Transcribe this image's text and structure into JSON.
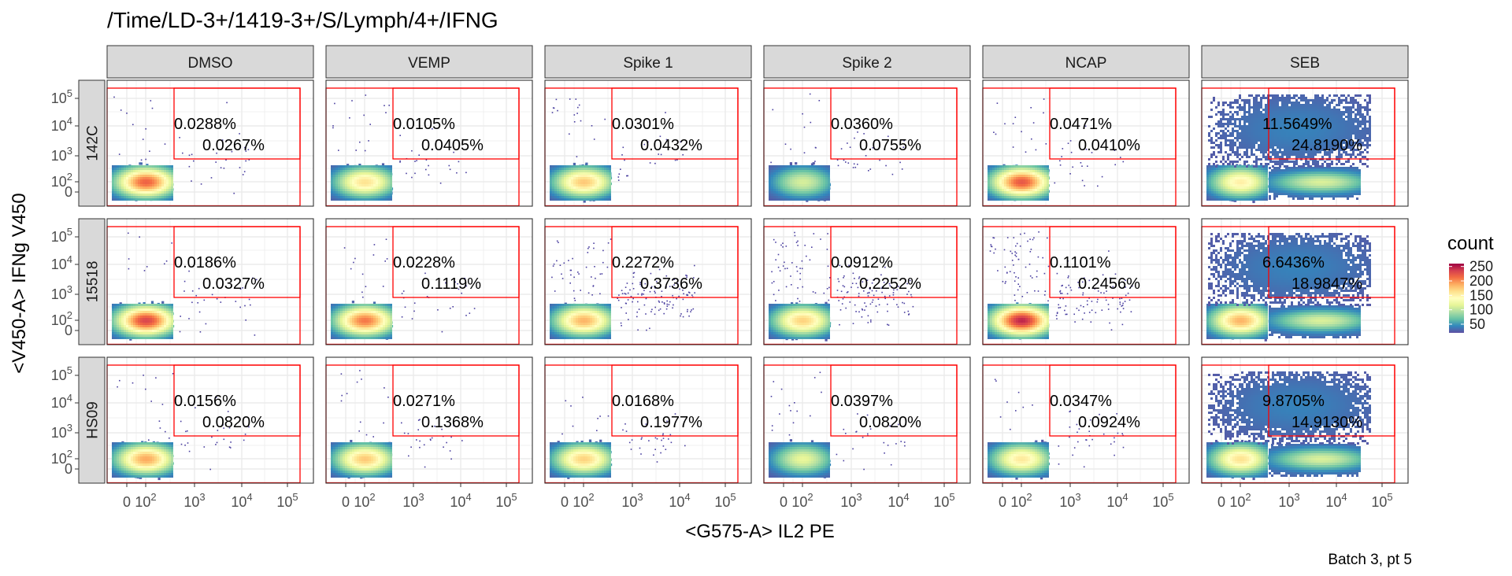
{
  "chart_data": {
    "type": "heatmap",
    "title": "/Time/LD-3+/1419-3+/S/Lymph/4+/IFNG",
    "xlabel": "<G575-A> IL2 PE",
    "ylabel": "<V450-A> IFNg V450",
    "caption": "Batch 3, pt 5",
    "columns": [
      "DMSO",
      "VEMP",
      "Spike 1",
      "Spike 2",
      "NCAP",
      "SEB"
    ],
    "rows": [
      "142C",
      "15518",
      "HS09"
    ],
    "x_tick_labels": [
      "0",
      "10",
      "10",
      "10",
      "10"
    ],
    "x_tick_exponents": [
      "",
      "2",
      "3",
      "4",
      "5"
    ],
    "y_tick_labels": [
      "0",
      "10",
      "10",
      "10",
      "10"
    ],
    "y_tick_exponents": [
      "",
      "2",
      "3",
      "4",
      "5"
    ],
    "legend": {
      "title": "count",
      "labels": [
        "250",
        "200",
        "150",
        "100",
        "50"
      ],
      "values": [
        250,
        200,
        150,
        100,
        50
      ],
      "colors": [
        "#9E0142",
        "#D53E4F",
        "#F46D43",
        "#FDAE61",
        "#FEE08B",
        "#FFFFBF",
        "#E6F598",
        "#ABDDA4",
        "#66C2A5",
        "#3288BD",
        "#5E4FA2"
      ]
    },
    "gate_color": "#FF0000",
    "gate_percentages": [
      [
        [
          "0.0288%",
          "0.0267%"
        ],
        [
          "0.0105%",
          "0.0405%"
        ],
        [
          "0.0301%",
          "0.0432%"
        ],
        [
          "0.0360%",
          "0.0755%"
        ],
        [
          "0.0471%",
          "0.0410%"
        ],
        [
          "11.5649%",
          "24.8190%"
        ]
      ],
      [
        [
          "0.0186%",
          "0.0327%"
        ],
        [
          "0.0228%",
          "0.1119%"
        ],
        [
          "0.2272%",
          "0.3736%"
        ],
        [
          "0.0912%",
          "0.2252%"
        ],
        [
          "0.1101%",
          "0.2456%"
        ],
        [
          "6.6436%",
          "18.9847%"
        ]
      ],
      [
        [
          "0.0156%",
          "0.0820%"
        ],
        [
          "0.0271%",
          "0.1368%"
        ],
        [
          "0.0168%",
          "0.1977%"
        ],
        [
          "0.0397%",
          "0.0820%"
        ],
        [
          "0.0347%",
          "0.0924%"
        ],
        [
          "9.8705%",
          "14.9130%"
        ]
      ]
    ],
    "blob_peak": [
      [
        210,
        150,
        165,
        95,
        215,
        140
      ],
      [
        225,
        200,
        175,
        160,
        240,
        175
      ],
      [
        180,
        165,
        160,
        105,
        145,
        150
      ]
    ]
  }
}
